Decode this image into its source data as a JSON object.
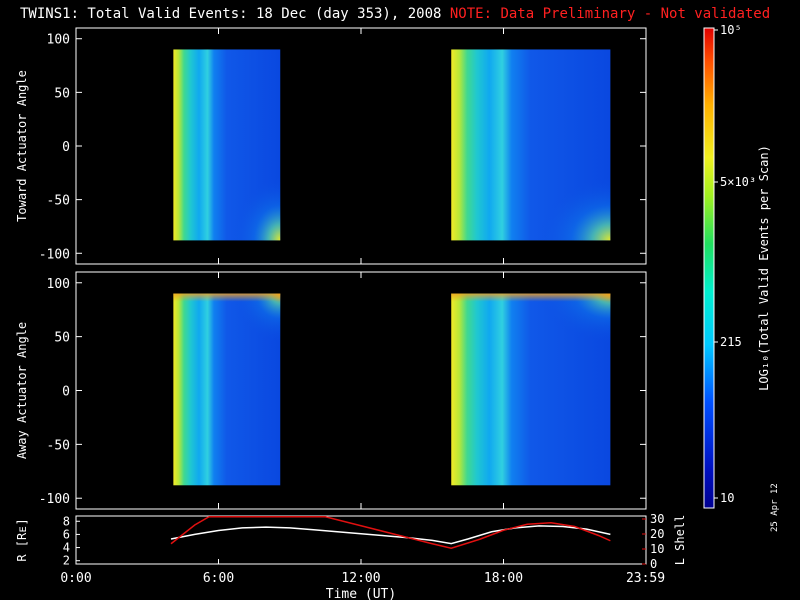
{
  "title": {
    "main": "TWINS1: Total Valid Events: 18 Dec (day 353), 2008",
    "note": "NOTE: Data Preliminary - Not validated"
  },
  "footer_stamp": "25 Apr 12",
  "colors": {
    "background": "#000000",
    "note": "#ff2020",
    "r_line": "#ffffff",
    "l_shell_line": "#e01010"
  },
  "chart_data": [
    {
      "type": "heatmap",
      "ylabel": "Toward Actuator Angle",
      "ylim": [
        -110,
        110
      ],
      "yticks": [
        100,
        50,
        0,
        -50,
        -100
      ],
      "x_range_hours": [
        0,
        24
      ],
      "data_blocks_hours": [
        [
          4.1,
          8.6
        ],
        [
          15.8,
          22.5
        ]
      ],
      "angle_range": [
        -88,
        90
      ]
    },
    {
      "type": "heatmap",
      "ylabel": "Away Actuator Angle",
      "ylim": [
        -110,
        110
      ],
      "yticks": [
        100,
        50,
        0,
        -50,
        -100
      ],
      "x_range_hours": [
        0,
        24
      ],
      "data_blocks_hours": [
        [
          4.1,
          8.6
        ],
        [
          15.8,
          22.5
        ]
      ],
      "angle_range": [
        -88,
        90
      ]
    },
    {
      "type": "colorbar",
      "label": "LOG10(Total Valid Events per Scan)",
      "ticks": [
        "10^5",
        "5x10^3",
        "215",
        "10"
      ]
    },
    {
      "type": "line",
      "xlabel": "Time (UT)",
      "xticks": [
        "0:00",
        "6:00",
        "12:00",
        "18:00",
        "23:59"
      ],
      "ylabel_left": "R [RE]",
      "yticks_left": [
        8,
        6,
        4,
        2
      ],
      "ylabel_right": "L Shell",
      "yticks_right": [
        30,
        20,
        10,
        0
      ],
      "ylim_left": [
        1.5,
        8.8
      ],
      "ylim_right": [
        0,
        32
      ],
      "series": [
        {
          "name": "R [RE]",
          "axis": "left",
          "x": [
            4.0,
            5.0,
            6.0,
            7.0,
            8.0,
            9.0,
            10.0,
            11.0,
            12.0,
            13.0,
            14.0,
            15.0,
            15.8,
            16.5,
            17.5,
            18.5,
            19.5,
            20.5,
            21.5,
            22.5
          ],
          "y": [
            5.3,
            6.0,
            6.6,
            7.0,
            7.1,
            7.0,
            6.7,
            6.4,
            6.1,
            5.8,
            5.5,
            5.1,
            4.6,
            5.3,
            6.4,
            7.0,
            7.3,
            7.2,
            6.8,
            6.0
          ]
        },
        {
          "name": "L Shell",
          "axis": "right",
          "x": [
            4.0,
            5.0,
            5.6,
            10.5,
            12.0,
            13.5,
            15.0,
            15.8,
            17.0,
            18.0,
            19.0,
            20.0,
            21.0,
            22.0,
            22.5
          ],
          "y": [
            13.5,
            26.0,
            31.5,
            31.5,
            25.5,
            19.5,
            13.5,
            10.5,
            16.5,
            22.5,
            26.5,
            27.5,
            25.0,
            19.0,
            15.5
          ]
        }
      ]
    }
  ]
}
